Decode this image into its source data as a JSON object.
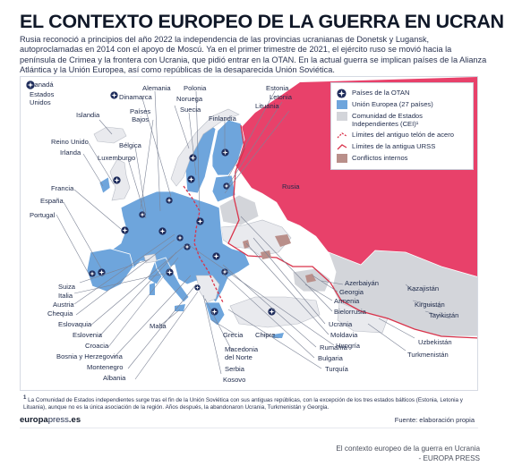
{
  "title": "EL CONTEXTO EUROPEO DE LA GUERRA EN UCRANIA",
  "intro": "Rusia reconoció a principios del año 2022 la independencia de las provincias ucranianas de Donetsk y Lugansk, autoproclamadas en 2014 con el apoyo de Moscú. Ya en el primer trimestre de 2021, el ejército ruso se movió hacia la península de Crimea y la frontera con Ucrania, que pidió entrar en la OTAN. En la actual guerra se implican países de la Alianza Atlántica y la Unión Europea, así como repúblicas de la desaparecida Unión Soviética.",
  "small_legend": [
    "Canadá",
    "Estados Unidos"
  ],
  "legend": [
    {
      "label": "Países de la OTAN",
      "symbol": "nato-marker"
    },
    {
      "label": "Unión Europea (27 países)",
      "symbol": "eu-swatch",
      "color": "#6ea5dc"
    },
    {
      "label": "Comunidad de Estados Independientes (CEI)¹",
      "symbol": "cei-swatch",
      "color": "#d3d5da"
    },
    {
      "label": "Límites del antiguo telón de acero",
      "symbol": "iron-curtain-line",
      "color": "#d9334b"
    },
    {
      "label": "Límites de la antigua URSS",
      "symbol": "ussr-line",
      "color": "#d9334b"
    },
    {
      "label": "Conflictos internos",
      "symbol": "conflict-swatch",
      "color": "#b98f8a"
    }
  ],
  "colors": {
    "russia": "#e8416a",
    "eu": "#6ea5dc",
    "cei": "#d3d5da",
    "non_member": "#e9eaee",
    "sea": "#ffffff",
    "marker": "#1f2d5c",
    "border_red": "#d9334b"
  },
  "countries": {
    "alemania": "Alemania",
    "polonia": "Polonia",
    "estonia": "Estonia",
    "dinamarca": "Dinamarca",
    "noruega": "Noruega",
    "letonia": "Letonia",
    "lituania": "Lituania",
    "suecia": "Suecia",
    "paises_bajos": "Países\nBajos",
    "islandia": "Islandia",
    "finlandia": "Finlandia",
    "belgica": "Bélgica",
    "reino_unido": "Reino Unido",
    "irlanda": "Irlanda",
    "luxemburgo": "Luxemburgo",
    "francia": "Francia",
    "espana": "España",
    "portugal": "Portugal",
    "rusia": "Rusia",
    "suiza": "Suiza",
    "italia": "Italia",
    "austria": "Austria",
    "chequia": "Chequia",
    "eslovaquia": "Eslovaquia",
    "eslovenia": "Eslovenia",
    "croacia": "Croacia",
    "bosnia": "Bosnia y Herzegovina",
    "montenegro": "Montenegro",
    "albania": "Albania",
    "malta": "Malta",
    "grecia": "Grecia",
    "chipre": "Chipre",
    "macedonia": "Macedonia\ndel Norte",
    "serbia": "Serbia",
    "kosovo": "Kosovo",
    "rumania": "Rumanía",
    "bulgaria": "Bulgaria",
    "turquia": "Turquía",
    "hungria": "Hungría",
    "moldavia": "Moldavia",
    "ucrania": "Ucrania",
    "bielorrusia": "Bielorrusia",
    "armenia": "Armenia",
    "georgia": "Georgia",
    "azerbaiyan": "Azerbaiyán",
    "kazajistan": "Kazajistán",
    "kirguistan": "Kirguistán",
    "tayikistan": "Tayikistán",
    "uzbekistan": "Uzbekistán",
    "turkmenistan": "Turkmenistán"
  },
  "footnote_marker": "1",
  "footnote": "La Comunidad de Estados independientes surge tras el fin de la Unión Soviética con sus antiguas repúblicas, con la excepción de los tres estados bálticos (Estonia, Letonia y Lituania), aunque no es la única asociación de la región. Años después, la abandonaron Ucrania, Turkmenistán y Georgia.",
  "brand_main": "europa",
  "brand_accent": "press",
  "brand_tld": ".es",
  "source": "Fuente: elaboración propia",
  "caption_line1": "El contexto europeo de la guerra en Ucrania",
  "caption_line2": "- EUROPA PRESS"
}
